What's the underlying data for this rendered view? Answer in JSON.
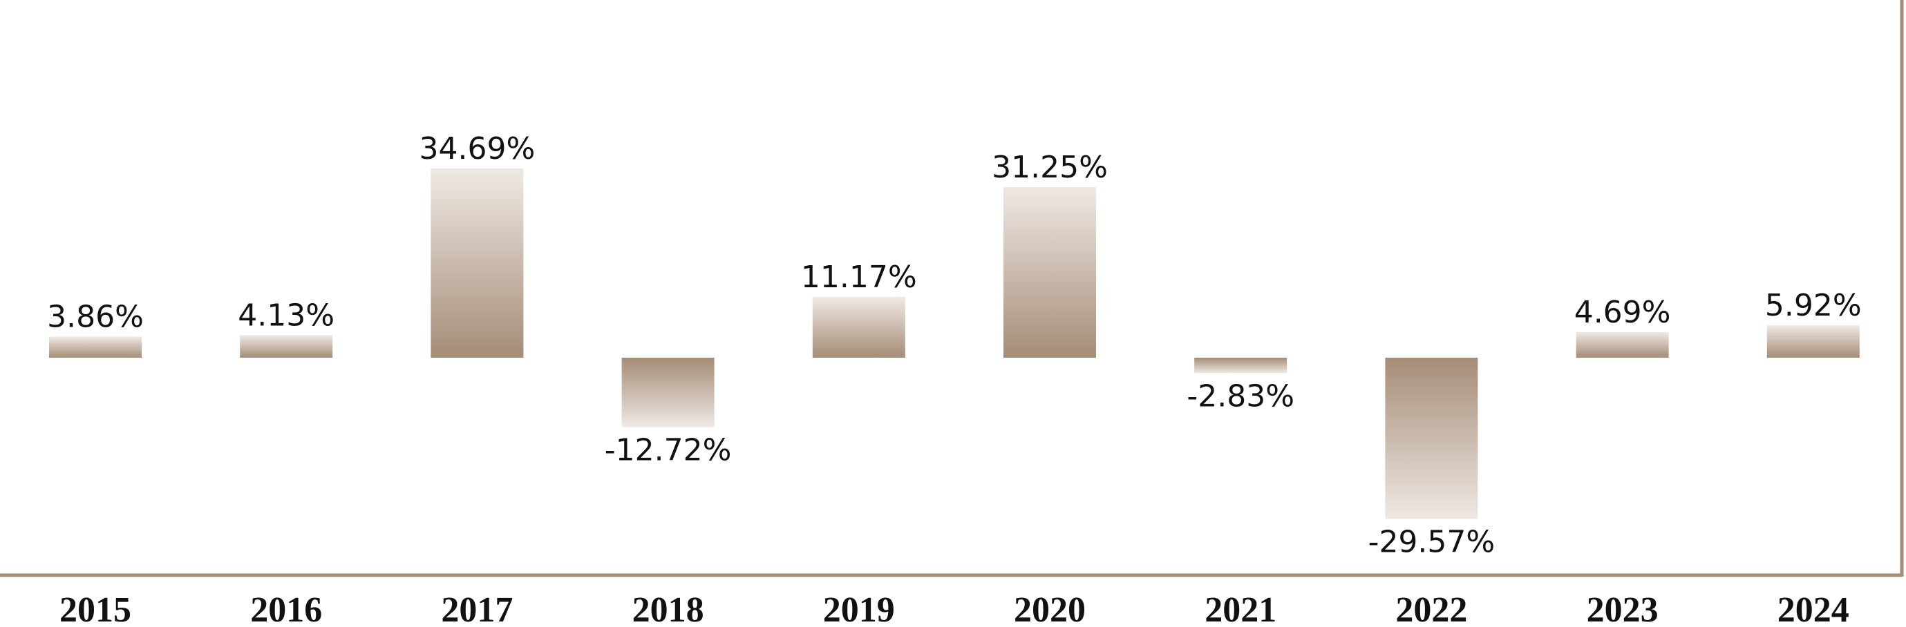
{
  "chart_data": {
    "type": "bar",
    "title": "",
    "xlabel": "",
    "ylabel": "",
    "categories": [
      "2015",
      "2016",
      "2017",
      "2018",
      "2019",
      "2020",
      "2021",
      "2022",
      "2023",
      "2024"
    ],
    "values": [
      3.86,
      4.13,
      34.69,
      -12.72,
      11.17,
      31.25,
      -2.83,
      -29.57,
      4.69,
      5.92
    ],
    "value_labels": [
      "3.86%",
      "4.13%",
      "34.69%",
      "-12.72%",
      "11.17%",
      "31.25%",
      "-2.83%",
      "-29.57%",
      "4.69%",
      "5.92%"
    ],
    "value_format": "percent, 2 decimals",
    "grid": false,
    "legend": "none",
    "colors": {
      "bar": "#a58c77",
      "bar_fade": "#efe9e4",
      "frame": "#a58c77",
      "text": "#111111"
    }
  }
}
